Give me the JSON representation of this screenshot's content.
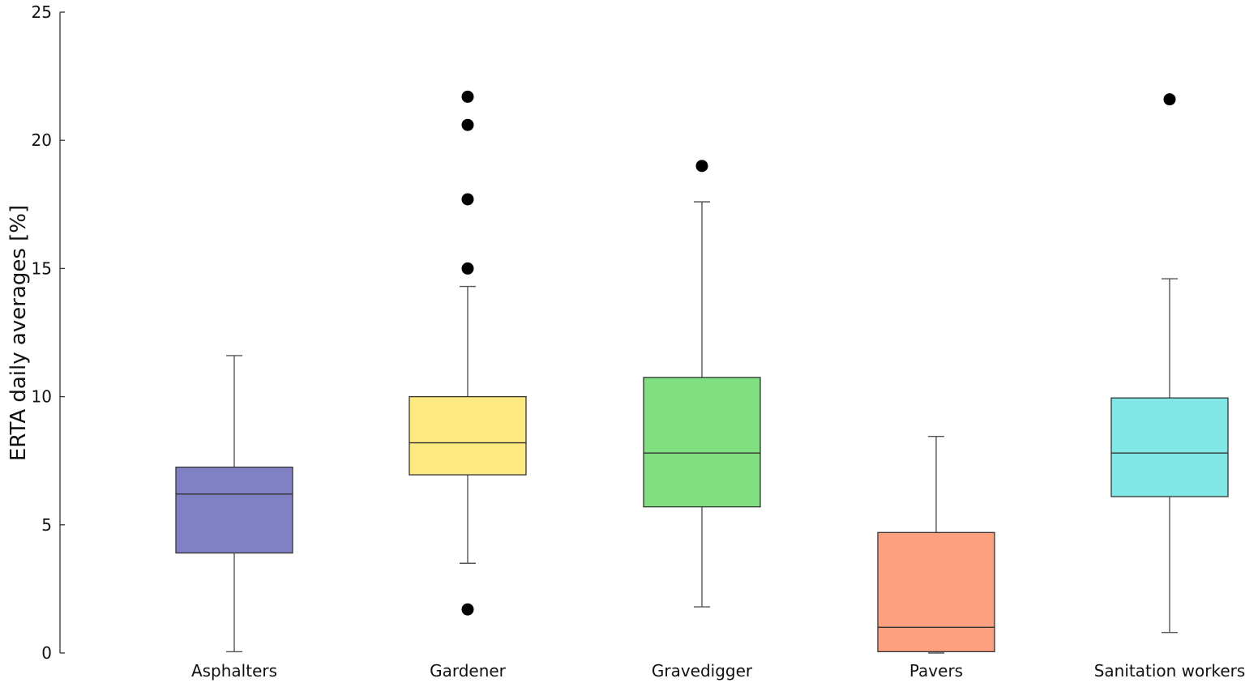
{
  "chart_data": {
    "type": "box",
    "title": "",
    "xlabel": "",
    "ylabel": "ERTA daily averages [%]",
    "ylim": [
      0,
      25
    ],
    "yticks": [
      0,
      5,
      10,
      15,
      20,
      25
    ],
    "grid": false,
    "legend": "none",
    "categories": [
      "Asphalters",
      "Gardener",
      "Gravedigger",
      "Pavers",
      "Sanitation workers"
    ],
    "boxes": [
      {
        "category": "Asphalters",
        "color": "#8080c4",
        "whisker_low": 0.05,
        "q1": 3.9,
        "median": 6.2,
        "q3": 7.25,
        "whisker_high": 11.6,
        "outliers": []
      },
      {
        "category": "Gardener",
        "color": "#fee880",
        "whisker_low": 3.5,
        "q1": 6.95,
        "median": 8.2,
        "q3": 10.0,
        "whisker_high": 14.3,
        "outliers": [
          1.7,
          15.0,
          17.7,
          20.6,
          21.7
        ]
      },
      {
        "category": "Gravedigger",
        "color": "#80df80",
        "whisker_low": 1.8,
        "q1": 5.7,
        "median": 7.8,
        "q3": 10.75,
        "whisker_high": 17.6,
        "outliers": [
          19.0
        ]
      },
      {
        "category": "Pavers",
        "color": "#fda080",
        "whisker_low": 0.0,
        "q1": 0.05,
        "median": 1.0,
        "q3": 4.7,
        "whisker_high": 8.45,
        "outliers": []
      },
      {
        "category": "Sanitation workers",
        "color": "#80e6e6",
        "whisker_low": 0.8,
        "q1": 6.1,
        "median": 7.8,
        "q3": 9.95,
        "whisker_high": 14.6,
        "outliers": [
          21.6
        ]
      }
    ]
  }
}
